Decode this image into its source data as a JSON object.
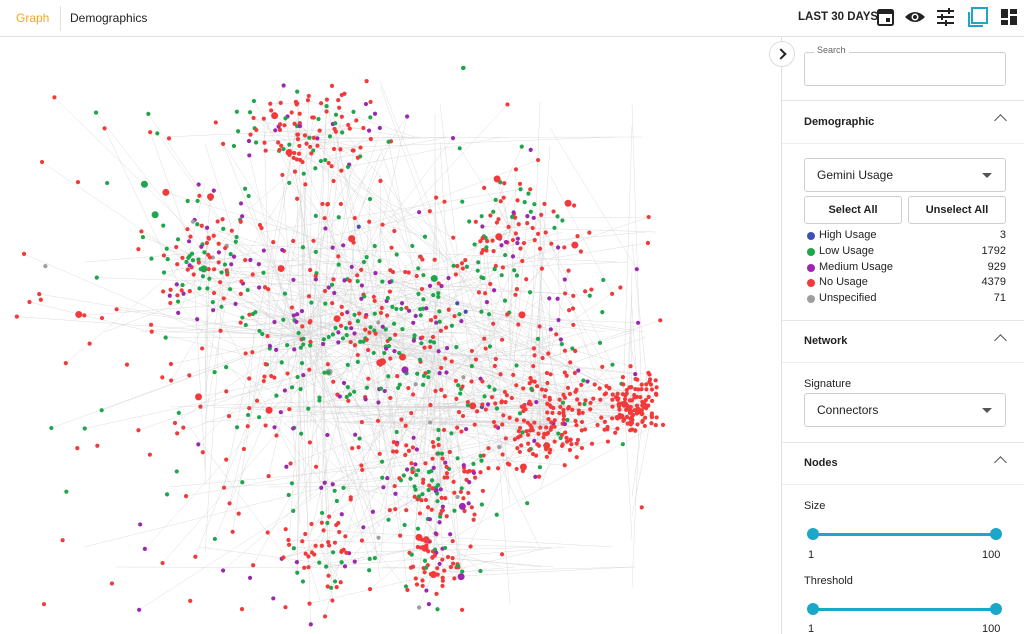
{
  "tabs": [
    "Graph",
    "Demographics"
  ],
  "toolbar": {
    "date_range": "LAST 30 DAYS"
  },
  "search": {
    "label": "Search"
  },
  "demographic": {
    "title": "Demographic",
    "dropdown": "Gemini Usage",
    "select_all": "Select All",
    "unselect_all": "Unselect All",
    "items": [
      {
        "label": "High Usage",
        "count": 3,
        "color": "#3f51b5"
      },
      {
        "label": "Low Usage",
        "count": 1792,
        "color": "#1ea64b"
      },
      {
        "label": "Medium Usage",
        "count": 929,
        "color": "#9c27b0"
      },
      {
        "label": "No Usage",
        "count": 4379,
        "color": "#f33a3a"
      },
      {
        "label": "Unspecified",
        "count": 71,
        "color": "#9e9e9e"
      }
    ]
  },
  "network": {
    "title": "Network",
    "signature_label": "Signature",
    "dropdown": "Connectors"
  },
  "nodes": {
    "title": "Nodes",
    "size": {
      "label": "Size",
      "min": 1,
      "max": 100
    },
    "threshold": {
      "label": "Threshold",
      "min": 1,
      "max": 100
    }
  }
}
